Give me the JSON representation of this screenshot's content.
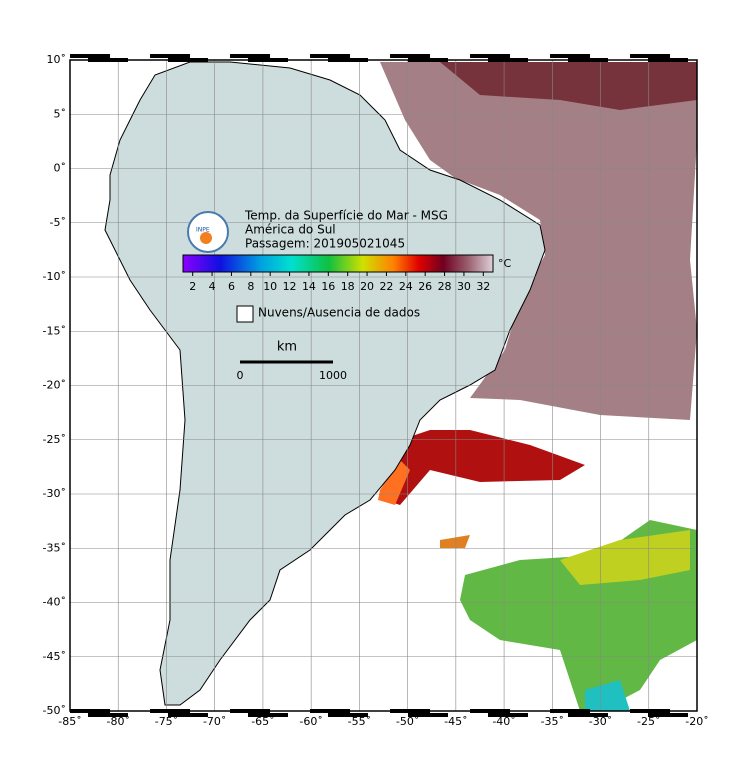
{
  "header": {
    "title": "Temp. da Superfície do Mar - MSG",
    "region": "América do Sul",
    "pass": "Passagem: 201905021045",
    "logo": "INPE"
  },
  "colorbar": {
    "unit": "°C",
    "ticks": [
      2,
      4,
      6,
      8,
      10,
      12,
      14,
      16,
      18,
      20,
      22,
      24,
      26,
      28,
      30,
      32
    ]
  },
  "legend": {
    "label": "Nuvens/Ausencia de dados"
  },
  "scale_bar": {
    "unit": "km",
    "start": "0",
    "end": "1000"
  },
  "axes": {
    "xticks": [
      {
        "value": -85,
        "label": "-85˚"
      },
      {
        "value": -80,
        "label": "-80˚"
      },
      {
        "value": -75,
        "label": "-75˚"
      },
      {
        "value": -70,
        "label": "-70˚"
      },
      {
        "value": -65,
        "label": "-65˚"
      },
      {
        "value": -60,
        "label": "-60˚"
      },
      {
        "value": -55,
        "label": "-55˚"
      },
      {
        "value": -50,
        "label": "-50˚"
      },
      {
        "value": -45,
        "label": "-45˚"
      },
      {
        "value": -40,
        "label": "-40˚"
      },
      {
        "value": -35,
        "label": "-35˚"
      },
      {
        "value": -30,
        "label": "-30˚"
      },
      {
        "value": -25,
        "label": "-25˚"
      },
      {
        "value": -20,
        "label": "-20˚"
      }
    ],
    "yticks": [
      {
        "value": 10,
        "label": "10˚"
      },
      {
        "value": 5,
        "label": "5˚"
      },
      {
        "value": 0,
        "label": "0˚"
      },
      {
        "value": -5,
        "label": "-5˚"
      },
      {
        "value": -10,
        "label": "-10˚"
      },
      {
        "value": -15,
        "label": "-15˚"
      },
      {
        "value": -20,
        "label": "-20˚"
      },
      {
        "value": -25,
        "label": "-25˚"
      },
      {
        "value": -30,
        "label": "-30˚"
      },
      {
        "value": -35,
        "label": "-35˚"
      },
      {
        "value": -40,
        "label": "-40˚"
      },
      {
        "value": -45,
        "label": "-45˚"
      },
      {
        "value": -50,
        "label": "-50˚"
      }
    ]
  }
}
